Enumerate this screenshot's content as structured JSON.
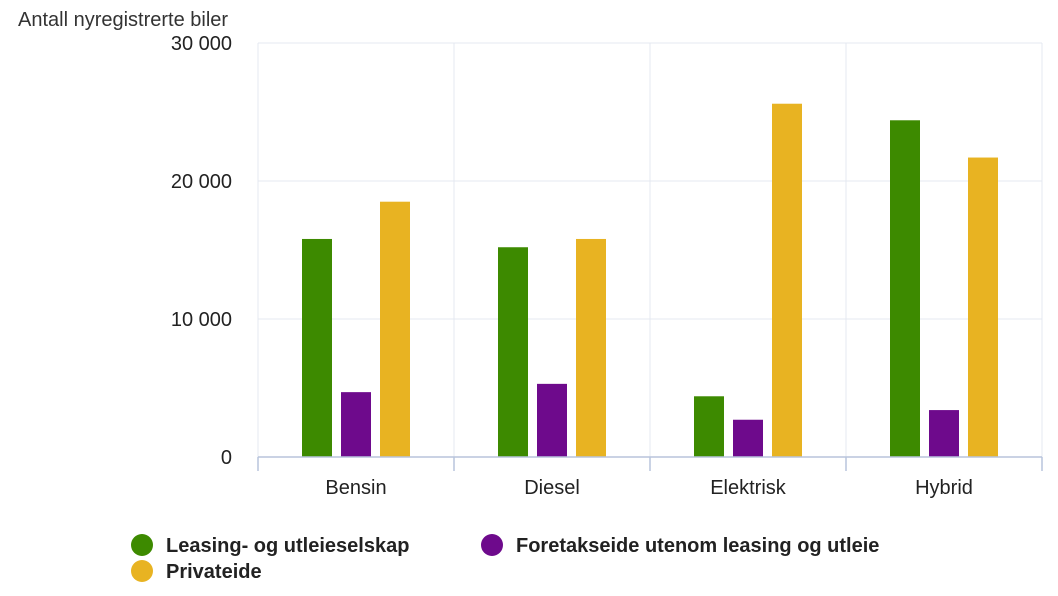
{
  "chart_data": {
    "type": "bar",
    "ylabel": "Antall nyregistrerte biler",
    "xlabel": "",
    "categories": [
      "Bensin",
      "Diesel",
      "Elektrisk",
      "Hybrid"
    ],
    "ylim": [
      0,
      30000
    ],
    "yticks": [
      0,
      10000,
      20000,
      30000
    ],
    "ytick_labels": [
      "0",
      "10 000",
      "20 000",
      "30 000"
    ],
    "grid": true,
    "legend_position": "bottom",
    "series": [
      {
        "name": "Leasing- og utleieselskap",
        "color": "#3d8a00",
        "values": [
          15800,
          15200,
          4400,
          24400
        ]
      },
      {
        "name": "Foretakseide utenom leasing og utleie",
        "color": "#6e0a8c",
        "values": [
          4700,
          5300,
          2700,
          3400
        ]
      },
      {
        "name": "Privateide",
        "color": "#e8b322",
        "values": [
          18500,
          15800,
          25600,
          21700
        ]
      }
    ]
  }
}
